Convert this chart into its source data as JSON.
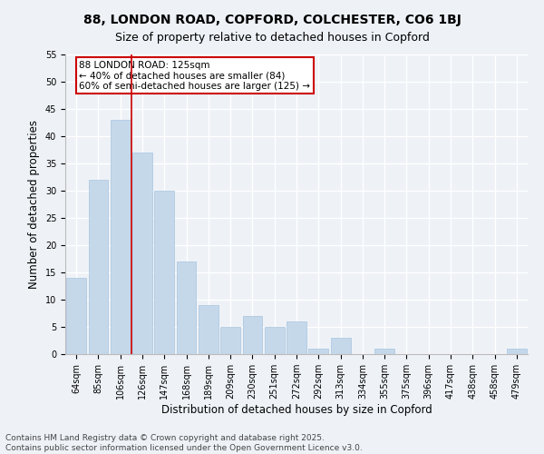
{
  "title": "88, LONDON ROAD, COPFORD, COLCHESTER, CO6 1BJ",
  "subtitle": "Size of property relative to detached houses in Copford",
  "xlabel": "Distribution of detached houses by size in Copford",
  "ylabel": "Number of detached properties",
  "categories": [
    "64sqm",
    "85sqm",
    "106sqm",
    "126sqm",
    "147sqm",
    "168sqm",
    "189sqm",
    "209sqm",
    "230sqm",
    "251sqm",
    "272sqm",
    "292sqm",
    "313sqm",
    "334sqm",
    "355sqm",
    "375sqm",
    "396sqm",
    "417sqm",
    "438sqm",
    "458sqm",
    "479sqm"
  ],
  "values": [
    14,
    32,
    43,
    37,
    30,
    17,
    9,
    5,
    7,
    5,
    6,
    1,
    3,
    0,
    1,
    0,
    0,
    0,
    0,
    0,
    1
  ],
  "bar_color": "#c5d8ea",
  "bar_edge_color": "#a8c4de",
  "vline_x_index": 2.5,
  "vline_color": "#cc0000",
  "annotation_text": "88 LONDON ROAD: 125sqm\n← 40% of detached houses are smaller (84)\n60% of semi-detached houses are larger (125) →",
  "annotation_box_facecolor": "#ffffff",
  "annotation_box_edgecolor": "#cc0000",
  "ylim": [
    0,
    55
  ],
  "yticks": [
    0,
    5,
    10,
    15,
    20,
    25,
    30,
    35,
    40,
    45,
    50,
    55
  ],
  "background_color": "#eef2f7",
  "grid_color": "#ffffff",
  "footer_line1": "Contains HM Land Registry data © Crown copyright and database right 2025.",
  "footer_line2": "Contains public sector information licensed under the Open Government Licence v3.0.",
  "title_fontsize": 10,
  "subtitle_fontsize": 9,
  "axis_label_fontsize": 8.5,
  "tick_fontsize": 7,
  "annotation_fontsize": 7.5,
  "footer_fontsize": 6.5
}
